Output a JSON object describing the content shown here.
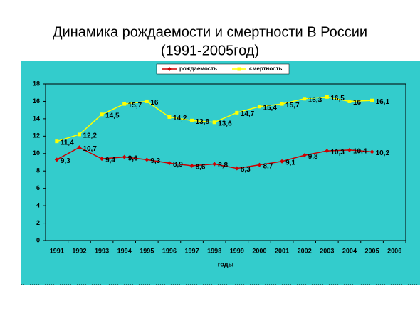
{
  "chart_data": {
    "type": "line",
    "title": "Динамика рождаемости и смертности В России",
    "subtitle": "(1991-2005год)",
    "x_label": "годы",
    "categories": [
      "1991",
      "1992",
      "1993",
      "1994",
      "1995",
      "1996",
      "1997",
      "1998",
      "1999",
      "2000",
      "2001",
      "2002",
      "2003",
      "2004",
      "2005",
      "2006"
    ],
    "series": [
      {
        "name": "рождаемость",
        "color": "#cc0000",
        "marker": "diamond",
        "values": [
          9.3,
          10.7,
          9.4,
          9.6,
          9.3,
          8.9,
          8.6,
          8.8,
          8.3,
          8.7,
          9.1,
          9.8,
          10.3,
          10.4,
          10.2,
          null
        ],
        "value_labels": [
          "9,3",
          "10,7",
          "9,4",
          "9,6",
          "9,3",
          "8,9",
          "8,6",
          "8,8",
          "8,3",
          "8,7",
          "9,1",
          "9,8",
          "10,3",
          "10,4",
          "10,2",
          null
        ]
      },
      {
        "name": "смертность",
        "color": "#ffff00",
        "marker": "square",
        "values": [
          11.4,
          12.2,
          14.5,
          15.7,
          16,
          14.2,
          13.8,
          13.6,
          14.7,
          15.4,
          15.7,
          16.3,
          16.5,
          16,
          16.1,
          null
        ],
        "value_labels": [
          "11,4",
          "12,2",
          "14,5",
          "15,7",
          "16",
          "14,2",
          "13,8",
          "13,6",
          "14,7",
          "15,4",
          "15,7",
          "16,3",
          "16,5",
          "16",
          "16,1",
          null
        ]
      }
    ],
    "ylim": [
      0,
      18
    ],
    "yticks": [
      0,
      2,
      4,
      6,
      8,
      10,
      12,
      14,
      16,
      18
    ],
    "grid": false,
    "background": "#33cccc"
  }
}
